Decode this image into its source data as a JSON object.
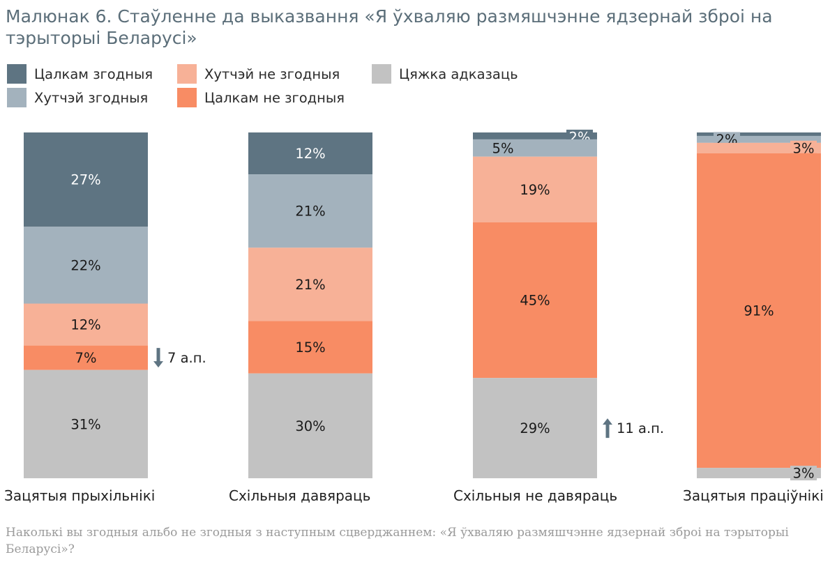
{
  "title": "Малюнак 6. Стаўленне да выказвання «Я ўхваляю размяшчэнне ядзернай зброі на тэрыторыі Беларусі»",
  "note": "Наколькі вы згодныя альбо не згодныя з наступным сцверджаннем: «Я ўхваляю размяшчэнне ядзернай зброі на тэрыторыі Беларусі»?",
  "chart_data": {
    "type": "bar",
    "stacked": true,
    "orientation": "vertical",
    "percent_stacked": true,
    "legend_position": "top-left",
    "grid": false,
    "categories": [
      "Зацятыя прыхільнікі",
      "Схільныя давяраць",
      "Схільныя не давяраць",
      "Зацятыя праціўнікі"
    ],
    "series": [
      {
        "name": "Цалкам згодныя",
        "color": "#5e7482",
        "text_color": "#ffffff",
        "values": [
          27,
          12,
          2,
          1
        ]
      },
      {
        "name": "Хутчэй згодныя",
        "color": "#a3b2bd",
        "text_color": "#1a1a1a",
        "values": [
          22,
          21,
          5,
          2
        ]
      },
      {
        "name": "Хутчэй не згодныя",
        "color": "#f7b197",
        "text_color": "#1a1a1a",
        "values": [
          12,
          21,
          19,
          3
        ]
      },
      {
        "name": "Цалкам не згодныя",
        "color": "#f88c64",
        "text_color": "#1a1a1a",
        "values": [
          7,
          15,
          45,
          91
        ]
      },
      {
        "name": "Цяжка адказаць",
        "color": "#c2c2c2",
        "text_color": "#1a1a1a",
        "values": [
          31,
          30,
          29,
          3
        ]
      }
    ],
    "data_labels": [
      [
        "27%",
        "12%",
        "2%",
        ""
      ],
      [
        "22%",
        "21%",
        "5%",
        "2%"
      ],
      [
        "12%",
        "21%",
        "19%",
        "3%"
      ],
      [
        "7%",
        "15%",
        "45%",
        "91%"
      ],
      [
        "31%",
        "30%",
        "29%",
        "3%"
      ]
    ],
    "annotations": [
      {
        "category_index": 0,
        "direction": "down",
        "text": "7 а.п.",
        "color": "#5e7482"
      },
      {
        "category_index": 2,
        "direction": "up",
        "text": "11 а.п.",
        "color": "#5e7482"
      }
    ]
  }
}
